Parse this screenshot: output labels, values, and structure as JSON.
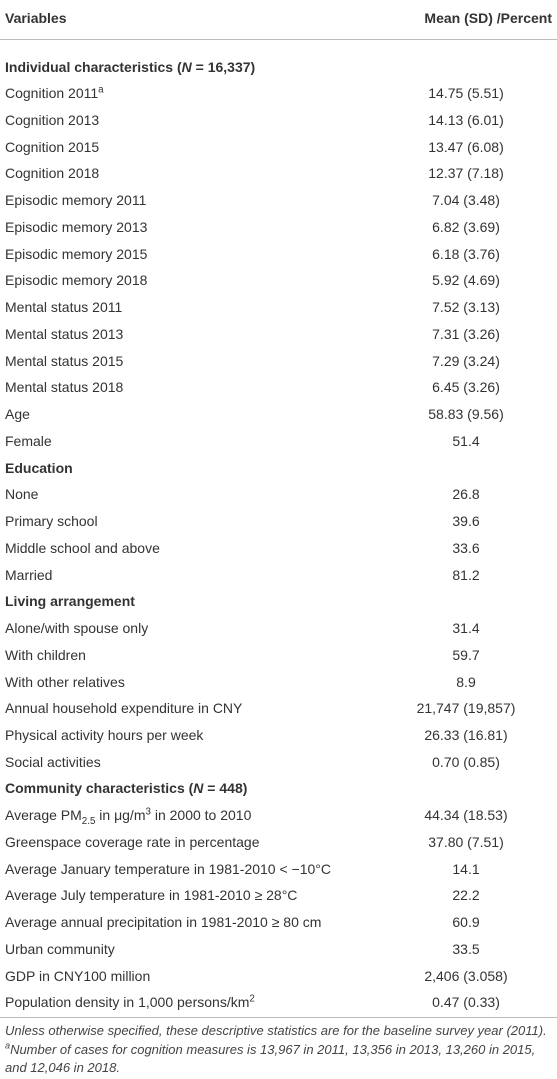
{
  "header": {
    "columns": [
      "Variables",
      "Mean (SD) /Percent"
    ]
  },
  "rows": [
    {
      "label": [
        {
          "text": "Individual characteristics (",
          "style": "b"
        },
        {
          "text": "N",
          "style": "b i"
        },
        {
          "text": " = 16,337)",
          "style": "b"
        }
      ]
    },
    {
      "label": [
        {
          "text": "Cognition 2011"
        },
        {
          "text": "a",
          "style": "sup"
        }
      ],
      "value": "14.75 (5.51)"
    },
    {
      "label": [
        {
          "text": "Cognition 2013"
        }
      ],
      "value": "14.13 (6.01)"
    },
    {
      "label": [
        {
          "text": "Cognition 2015"
        }
      ],
      "value": "13.47 (6.08)"
    },
    {
      "label": [
        {
          "text": "Cognition 2018"
        }
      ],
      "value": "12.37 (7.18)"
    },
    {
      "label": [
        {
          "text": "Episodic memory 2011"
        }
      ],
      "value": "7.04 (3.48)"
    },
    {
      "label": [
        {
          "text": "Episodic memory 2013"
        }
      ],
      "value": "6.82 (3.69)"
    },
    {
      "label": [
        {
          "text": "Episodic memory 2015"
        }
      ],
      "value": "6.18 (3.76)"
    },
    {
      "label": [
        {
          "text": "Episodic memory 2018"
        }
      ],
      "value": "5.92 (4.69)"
    },
    {
      "label": [
        {
          "text": "Mental status 2011"
        }
      ],
      "value": "7.52 (3.13)"
    },
    {
      "label": [
        {
          "text": "Mental status 2013"
        }
      ],
      "value": "7.31 (3.26)"
    },
    {
      "label": [
        {
          "text": "Mental status 2015"
        }
      ],
      "value": "7.29 (3.24)"
    },
    {
      "label": [
        {
          "text": "Mental status 2018"
        }
      ],
      "value": "6.45 (3.26)"
    },
    {
      "label": [
        {
          "text": "Age"
        }
      ],
      "value": "58.83 (9.56)"
    },
    {
      "label": [
        {
          "text": "Female"
        }
      ],
      "value": "51.4"
    },
    {
      "label": [
        {
          "text": "Education",
          "style": "b"
        }
      ]
    },
    {
      "label": [
        {
          "text": "None"
        }
      ],
      "value": "26.8"
    },
    {
      "label": [
        {
          "text": "Primary school"
        }
      ],
      "value": "39.6"
    },
    {
      "label": [
        {
          "text": "Middle school and above"
        }
      ],
      "value": "33.6"
    },
    {
      "label": [
        {
          "text": "Married"
        }
      ],
      "value": "81.2"
    },
    {
      "label": [
        {
          "text": "Living arrangement",
          "style": "b"
        }
      ]
    },
    {
      "label": [
        {
          "text": "Alone/with spouse only"
        }
      ],
      "value": "31.4"
    },
    {
      "label": [
        {
          "text": "With children"
        }
      ],
      "value": "59.7"
    },
    {
      "label": [
        {
          "text": "With other relatives"
        }
      ],
      "value": "8.9"
    },
    {
      "label": [
        {
          "text": "Annual household expenditure in CNY"
        }
      ],
      "value": "21,747 (19,857)"
    },
    {
      "label": [
        {
          "text": "Physical activity hours per week"
        }
      ],
      "value": "26.33 (16.81)"
    },
    {
      "label": [
        {
          "text": "Social activities"
        }
      ],
      "value": "0.70 (0.85)"
    },
    {
      "label": [
        {
          "text": "Community characteristics (",
          "style": "b"
        },
        {
          "text": "N",
          "style": "b i"
        },
        {
          "text": " = 448)",
          "style": "b"
        }
      ]
    },
    {
      "label": [
        {
          "text": "Average PM"
        },
        {
          "text": "2.5",
          "style": "sub"
        },
        {
          "text": " in μg/m"
        },
        {
          "text": "3",
          "style": "sup"
        },
        {
          "text": " in 2000 to 2010"
        }
      ],
      "value": "44.34 (18.53)"
    },
    {
      "label": [
        {
          "text": "Greenspace coverage rate in percentage"
        }
      ],
      "value": "37.80 (7.51)"
    },
    {
      "label": [
        {
          "text": "Average January temperature in 1981-2010 < −10°C"
        }
      ],
      "value": "14.1"
    },
    {
      "label": [
        {
          "text": "Average July temperature in 1981-2010 ≥ 28°C"
        }
      ],
      "value": "22.2"
    },
    {
      "label": [
        {
          "text": "Average annual precipitation in 1981-2010 ≥ 80 cm"
        }
      ],
      "value": "60.9"
    },
    {
      "label": [
        {
          "text": "Urban community"
        }
      ],
      "value": "33.5"
    },
    {
      "label": [
        {
          "text": "GDP in CNY100 million"
        }
      ],
      "value": "2,406 (3.058)"
    },
    {
      "label": [
        {
          "text": "Population density in 1,000 persons/km"
        },
        {
          "text": "2",
          "style": "sup"
        }
      ],
      "value": "0.47 (0.33)"
    }
  ],
  "footnote": [
    {
      "text": "Unless otherwise specified, these descriptive statistics are for the baseline survey year (2011). "
    },
    {
      "text": "a",
      "style": "sup"
    },
    {
      "text": "Number of cases for cognition measures is 13,967 in 2011, 13,356 in 2013, 13,260 in 2015, and 12,046 in 2018."
    }
  ]
}
